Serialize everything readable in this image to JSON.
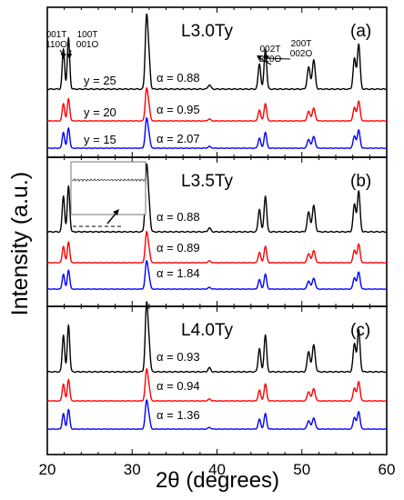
{
  "figure": {
    "ylabel": "Intensity (a.u.)",
    "xlabel": "2θ (degrees)"
  },
  "chart_data": [
    {
      "type": "line",
      "panel": "(a)",
      "sample": "L3.0Ty",
      "xlim": [
        20,
        60
      ],
      "xticks": [
        20,
        30,
        40,
        50,
        60
      ],
      "peak_labels": [
        {
          "lines": [
            "001T",
            "110O"
          ],
          "x": 21.9
        },
        {
          "lines": [
            "100T",
            "001O"
          ],
          "x": 22.6
        },
        {
          "lines": [
            "002T",
            "220O"
          ],
          "x": 45.0
        },
        {
          "lines": [
            "200T",
            "002O"
          ],
          "x": 45.8
        }
      ],
      "series": [
        {
          "name": "y = 25",
          "alpha_label": "α = 0.88",
          "color": "#000000"
        },
        {
          "name": "y = 20",
          "alpha_label": "α = 0.95",
          "color": "#ff0000"
        },
        {
          "name": "y = 15",
          "alpha_label": "α = 2.07",
          "color": "#0000ff"
        }
      ]
    },
    {
      "type": "line",
      "panel": "(b)",
      "sample": "L3.5Ty",
      "xlim": [
        20,
        60
      ],
      "xticks": [
        20,
        30,
        40,
        50,
        60
      ],
      "series": [
        {
          "name": "",
          "alpha_label": "α = 0.88",
          "color": "#000000"
        },
        {
          "name": "",
          "alpha_label": "α = 0.89",
          "color": "#ff0000"
        },
        {
          "name": "",
          "alpha_label": "α = 1.84",
          "color": "#0000ff"
        }
      ]
    },
    {
      "type": "line",
      "panel": "(c)",
      "sample": "L4.0Ty",
      "xlim": [
        20,
        60
      ],
      "xticks": [
        20,
        30,
        40,
        50,
        60
      ],
      "series": [
        {
          "name": "",
          "alpha_label": "α = 0.93",
          "color": "#000000"
        },
        {
          "name": "",
          "alpha_label": "α = 0.94",
          "color": "#ff0000"
        },
        {
          "name": "",
          "alpha_label": "α = 1.36",
          "color": "#0000ff"
        }
      ]
    }
  ]
}
